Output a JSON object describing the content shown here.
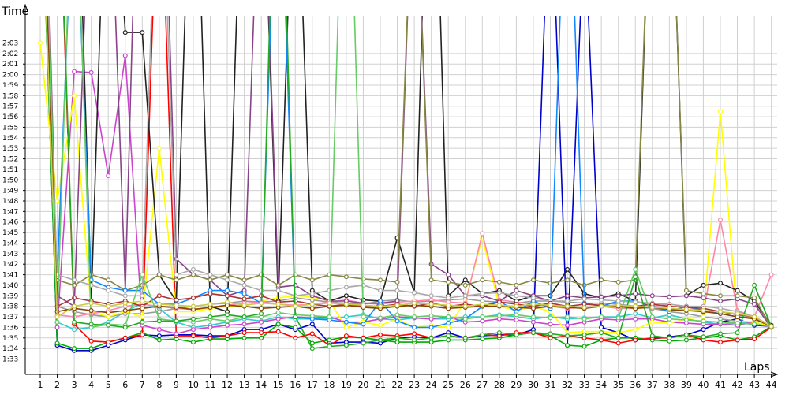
{
  "chart_data": {
    "type": "line",
    "title": "",
    "ylabel": "Time",
    "xlabel": "Laps",
    "x": [
      1,
      2,
      3,
      4,
      5,
      6,
      7,
      8,
      9,
      10,
      11,
      12,
      13,
      14,
      15,
      16,
      17,
      18,
      19,
      20,
      21,
      22,
      23,
      24,
      25,
      26,
      27,
      28,
      29,
      30,
      31,
      32,
      33,
      34,
      35,
      36,
      37,
      38,
      39,
      40,
      41,
      42,
      43,
      44
    ],
    "ylim_seconds": [
      93,
      124
    ],
    "y_ticks": [
      "1:33",
      "1:34",
      "1:35",
      "1:36",
      "1:37",
      "1:38",
      "1:39",
      "1:40",
      "1:41",
      "1:42",
      "1:43",
      "1:44",
      "1:45",
      "1:46",
      "1:47",
      "1:48",
      "1:49",
      "1:50",
      "1:51",
      "1:52",
      "1:53",
      "1:54",
      "1:55",
      "1:56",
      "1:57",
      "1:58",
      "1:59",
      "2:00",
      "2:01",
      "2:02",
      "2:03"
    ],
    "grid": true,
    "legend": "none",
    "series": [
      {
        "color": "#0000cc",
        "values": [
          142.5,
          94.3,
          93.8,
          93.8,
          94.3,
          94.8,
          95.3,
          95.2,
          95.3,
          95.3,
          95.2,
          95.2,
          95.8,
          95.8,
          96.3,
          95.8,
          96.3,
          94.5,
          94.6,
          94.6,
          94.5,
          95.0,
          95.1,
          95.0,
          95.5,
          95.0,
          95.2,
          95.3,
          95.3,
          95.8,
          140.9,
          94.3,
          135.0,
          96.0,
          95.5,
          94.8,
          94.9,
          95.1,
          95.3,
          95.8,
          96.5,
          96.8,
          96.2,
          96.1
        ]
      },
      {
        "color": "#00aa00",
        "values": [
          141.5,
          94.5,
          94.0,
          94.0,
          94.6,
          95.0,
          95.5,
          94.8,
          94.9,
          94.6,
          94.9,
          94.9,
          95.0,
          95.0,
          96.3,
          96.0,
          94.5,
          94.8,
          95.1,
          95.0,
          94.8,
          94.6,
          94.6,
          94.6,
          94.8,
          94.8,
          94.9,
          95.0,
          95.3,
          95.5,
          95.2,
          94.3,
          94.2,
          94.8,
          95.0,
          95.0,
          94.8,
          94.7,
          94.8,
          95.0,
          95.2,
          94.8,
          95.1,
          96.1
        ]
      },
      {
        "color": "#ff0000",
        "values": [
          144.8,
          144.2,
          96.3,
          94.7,
          94.6,
          95.0,
          95.3,
          144.2,
          95.2,
          95.2,
          95.0,
          95.2,
          95.5,
          95.5,
          95.6,
          95.0,
          95.4,
          94.3,
          95.2,
          95.0,
          95.3,
          95.2,
          95.4,
          95.0,
          95.2,
          95.0,
          95.3,
          95.2,
          95.5,
          95.5,
          95.0,
          95.2,
          95.0,
          94.8,
          94.5,
          94.8,
          95.0,
          95.0,
          95.3,
          94.8,
          94.6,
          94.8,
          94.9,
          96.0
        ]
      },
      {
        "color": "#33cccc",
        "values": [
          142.0,
          96.5,
          95.8,
          96.0,
          96.5,
          97.5,
          98.3,
          97.8,
          96.5,
          96.0,
          96.2,
          96.5,
          96.8,
          96.6,
          97.0,
          96.8,
          96.8,
          96.8,
          97.0,
          97.2,
          96.8,
          96.7,
          96.9,
          96.8,
          96.8,
          97.0,
          97.0,
          97.2,
          97.0,
          96.8,
          97.0,
          96.8,
          96.9,
          97.0,
          97.0,
          97.3,
          96.9,
          97.2,
          96.8,
          96.5,
          96.3,
          96.4,
          96.5,
          96.1
        ]
      },
      {
        "color": "#cc44cc",
        "values": [
          156.0,
          96.0,
          120.3,
          120.2,
          110.4,
          121.8,
          96.2,
          95.8,
          95.4,
          95.8,
          96.0,
          96.2,
          96.3,
          96.5,
          96.8,
          97.0,
          96.9,
          97.0,
          96.5,
          96.5,
          96.8,
          97.0,
          96.9,
          96.8,
          97.0,
          96.5,
          96.6,
          96.8,
          96.7,
          96.5,
          96.3,
          96.2,
          96.5,
          96.8,
          96.7,
          96.8,
          96.8,
          96.5,
          96.4,
          96.3,
          96.3,
          96.2,
          96.5,
          96.1
        ]
      },
      {
        "color": "#999999",
        "values": [
          158.0,
          98.0,
          97.5,
          97.2,
          97.0,
          97.3,
          97.3,
          97.5,
          97.8,
          98.0,
          98.2,
          98.3,
          98.5,
          98.4,
          98.5,
          98.8,
          98.6,
          98.4,
          98.3,
          98.2,
          98.5,
          98.6,
          98.4,
          98.5,
          98.6,
          98.7,
          98.5,
          98.4,
          98.3,
          98.5,
          98.5,
          98.4,
          98.3,
          98.3,
          98.2,
          98.0,
          97.8,
          97.5,
          97.3,
          97.0,
          96.8,
          96.6,
          96.5,
          96.1
        ]
      },
      {
        "color": "#ffff00",
        "values": [
          123.0,
          108.0,
          118.0,
          97.5,
          97.0,
          97.5,
          97.0,
          113.0,
          97.5,
          97.5,
          97.8,
          98.0,
          98.0,
          98.5,
          98.8,
          99.0,
          98.9,
          98.5,
          96.0,
          96.5,
          96.2,
          96.8,
          96.0,
          96.2,
          96.0,
          98.5,
          104.5,
          98.0,
          97.6,
          98.0,
          97.5,
          95.5,
          95.6,
          95.6,
          95.5,
          95.8,
          96.5,
          96.4,
          96.8,
          97.0,
          116.5,
          96.6,
          96.5,
          96.1
        ]
      },
      {
        "color": "#ff88aa",
        "values": [
          157.0,
          97.2,
          97.0,
          97.3,
          97.6,
          98.0,
          98.2,
          98.0,
          97.8,
          97.7,
          97.9,
          98.1,
          98.3,
          98.4,
          98.2,
          98.1,
          98.2,
          98.4,
          98.6,
          98.3,
          98.2,
          98.4,
          98.5,
          98.6,
          98.4,
          98.3,
          104.9,
          98.6,
          98.4,
          98.2,
          98.0,
          97.8,
          97.9,
          98.0,
          97.8,
          97.8,
          98.0,
          98.2,
          98.0,
          97.4,
          106.2,
          97.6,
          97.0,
          101.0
        ]
      },
      {
        "color": "#222222",
        "values": [
          148.8,
          151.0,
          152.0,
          98.5,
          149.2,
          124.0,
          124.0,
          101.0,
          98.5,
          151.5,
          98.0,
          97.5,
          148.8,
          145.5,
          98.5,
          146.9,
          99.5,
          98.5,
          99.0,
          98.6,
          98.5,
          104.5,
          99.3,
          156.0,
          99.0,
          100.5,
          99.2,
          99.5,
          98.5,
          99.0,
          99.0,
          101.5,
          99.2,
          98.8,
          99.2,
          98.5,
          145.5,
          145.0,
          99.0,
          100.0,
          100.2,
          99.5,
          98.5,
          96.2
        ]
      },
      {
        "color": "#884488",
        "values": [
          159.0,
          99.0,
          98.0,
          143.5,
          145.0,
          99.5,
          159.0,
          158.0,
          102.5,
          101.0,
          100.5,
          99.0,
          99.5,
          146.6,
          99.8,
          100.0,
          99.0,
          98.5,
          98.5,
          98.3,
          98.3,
          98.5,
          143.5,
          102.0,
          101.0,
          99.0,
          99.0,
          98.5,
          99.5,
          99.0,
          98.5,
          99.0,
          98.8,
          98.9,
          99.0,
          99.2,
          99.0,
          98.9,
          99.0,
          98.8,
          98.5,
          98.7,
          98.2,
          96.0
        ]
      },
      {
        "color": "#888844",
        "values": [
          141.5,
          100.5,
          100.0,
          101.0,
          100.5,
          99.5,
          100.0,
          101.0,
          100.5,
          101.0,
          100.5,
          101.0,
          100.5,
          101.0,
          100.0,
          101.0,
          100.5,
          101.0,
          100.8,
          100.6,
          100.5,
          100.3,
          143.5,
          100.5,
          100.3,
          100.0,
          100.5,
          100.3,
          100.0,
          100.5,
          100.2,
          100.5,
          100.0,
          100.5,
          100.3,
          100.5,
          145.5,
          145.0,
          99.5,
          99.2,
          99.0,
          99.0,
          98.8,
          96.0
        ]
      },
      {
        "color": "#1188ff",
        "values": [
          142.0,
          100.8,
          140.5,
          100.5,
          99.8,
          99.5,
          99.5,
          98.2,
          98.2,
          98.8,
          99.5,
          99.5,
          99.2,
          98.3,
          147.3,
          97.0,
          96.8,
          96.7,
          96.5,
          96.3,
          98.5,
          96.6,
          96.0,
          96.0,
          96.4,
          96.8,
          98.0,
          98.5,
          97.5,
          98.5,
          97.8,
          146.3,
          98.3,
          98.0,
          98.5,
          98.5,
          98.0,
          97.5,
          98.0,
          97.6,
          97.3,
          97.0,
          96.9,
          96.1
        ]
      },
      {
        "color": "#aaaaaa",
        "values": [
          146.0,
          101.0,
          100.5,
          100.0,
          99.5,
          99.0,
          99.0,
          148.5,
          101.0,
          101.5,
          101.0,
          100.5,
          100.0,
          99.5,
          99.5,
          99.0,
          99.2,
          99.5,
          99.8,
          100.0,
          99.5,
          99.5,
          99.3,
          99.0,
          98.8,
          99.0,
          99.2,
          99.3,
          99.0,
          98.8,
          98.5,
          98.5,
          98.7,
          98.6,
          98.5,
          98.4,
          98.3,
          98.2,
          98.0,
          98.0,
          97.8,
          97.5,
          97.0,
          96.1
        ]
      },
      {
        "color": "#aa3333",
        "values": [
          146.0,
          98.0,
          98.8,
          98.5,
          98.2,
          98.5,
          98.0,
          99.0,
          98.6,
          98.8,
          99.2,
          99.0,
          98.7,
          99.0,
          98.4,
          98.5,
          98.2,
          98.0,
          98.2,
          98.0,
          98.0,
          98.2,
          98.0,
          98.3,
          98.0,
          98.2,
          98.0,
          98.4,
          98.2,
          98.0,
          98.3,
          98.0,
          98.2,
          98.1,
          98.0,
          98.0,
          98.2,
          98.0,
          97.9,
          97.8,
          97.5,
          97.2,
          97.0,
          96.1
        ]
      },
      {
        "color": "#66cc66",
        "values": [
          159.0,
          96.5,
          145.0,
          96.0,
          96.3,
          96.2,
          101.0,
          96.8,
          96.6,
          96.5,
          96.8,
          96.6,
          97.0,
          97.0,
          97.4,
          97.2,
          97.1,
          97.0,
          152.5,
          97.0,
          96.9,
          97.2,
          97.0,
          97.1,
          97.0,
          96.8,
          97.0,
          97.1,
          97.2,
          97.0,
          96.9,
          97.0,
          96.8,
          97.0,
          96.9,
          101.5,
          97.0,
          96.8,
          96.7,
          96.6,
          96.5,
          96.4,
          96.3,
          96.1
        ]
      },
      {
        "color": "#22aa22",
        "values": [
          149.5,
          146.0,
          96.5,
          96.3,
          96.2,
          96.0,
          96.5,
          96.6,
          96.6,
          96.8,
          97.0,
          97.2,
          97.0,
          97.3,
          153.5,
          97.0,
          94.0,
          94.2,
          94.3,
          94.5,
          94.8,
          95.0,
          94.8,
          95.0,
          95.2,
          95.0,
          95.3,
          95.5,
          95.3,
          95.5,
          95.4,
          95.2,
          95.3,
          95.5,
          95.0,
          100.8,
          95.2,
          95.0,
          95.3,
          95.1,
          95.4,
          95.5,
          100.0,
          96.1
        ]
      },
      {
        "color": "#884400",
        "values": [
          145.0,
          97.5,
          97.8,
          97.6,
          97.4,
          97.6,
          97.8,
          98.0,
          97.9,
          97.7,
          97.9,
          98.1,
          98.0,
          97.8,
          97.9,
          98.0,
          97.8,
          98.0,
          98.1,
          97.9,
          97.8,
          98.0,
          98.1,
          98.0,
          97.8,
          97.9,
          98.0,
          98.0,
          97.9,
          97.8,
          98.0,
          97.9,
          97.8,
          98.0,
          98.0,
          97.8,
          97.9,
          97.7,
          97.6,
          97.5,
          97.3,
          97.0,
          96.8,
          96.1
        ]
      },
      {
        "color": "#cccc44",
        "values": [
          141.5,
          97.0,
          98.0,
          98.3,
          98.0,
          98.3,
          98.5,
          98.2,
          98.1,
          98.0,
          98.2,
          98.4,
          98.1,
          98.3,
          98.2,
          98.0,
          98.2,
          98.3,
          98.2,
          98.1,
          98.0,
          98.1,
          98.3,
          98.2,
          98.1,
          98.0,
          98.2,
          98.1,
          98.0,
          98.2,
          98.1,
          98.0,
          97.9,
          98.0,
          98.1,
          98.0,
          97.9,
          97.8,
          97.7,
          97.6,
          97.5,
          97.3,
          97.0,
          96.1
        ]
      }
    ]
  }
}
